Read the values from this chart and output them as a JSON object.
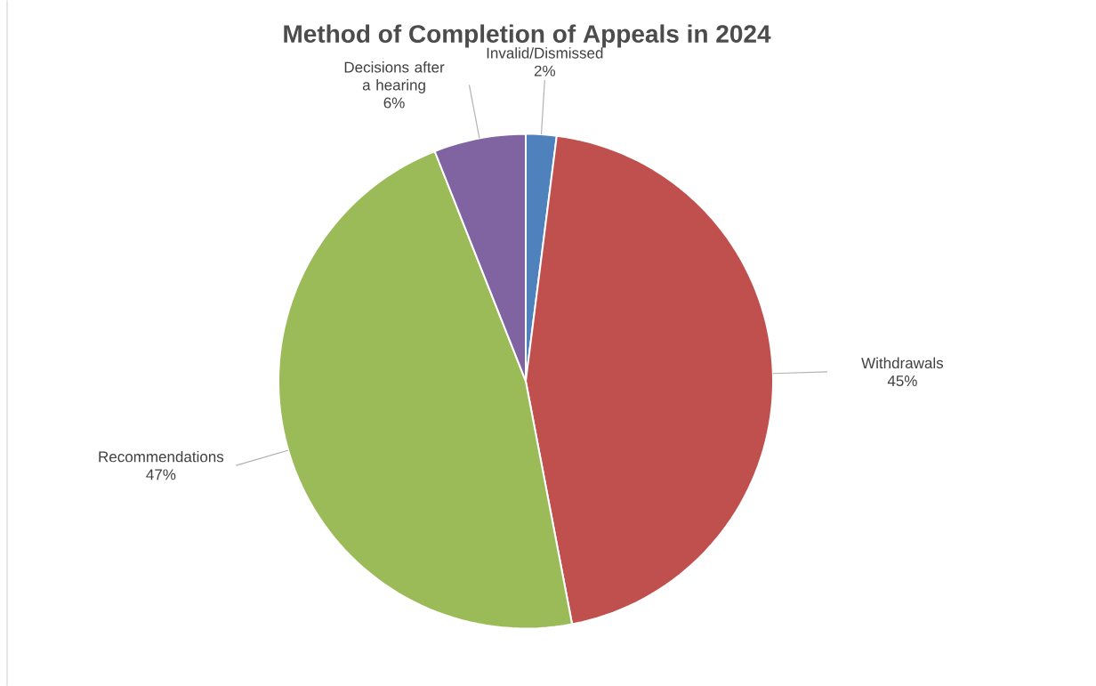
{
  "chart_data": {
    "type": "pie",
    "title": "Method of Completion of Appeals in 2024",
    "categories": [
      "Invalid/Dismissed",
      "Withdrawals",
      "Recommendations",
      "Decisions after a hearing"
    ],
    "values": [
      2,
      45,
      47,
      6
    ],
    "colors": [
      "#4f81bd",
      "#c0504d",
      "#9bbb59",
      "#8064a2"
    ],
    "value_labels": [
      "2%",
      "45%",
      "47%",
      "6%"
    ]
  }
}
